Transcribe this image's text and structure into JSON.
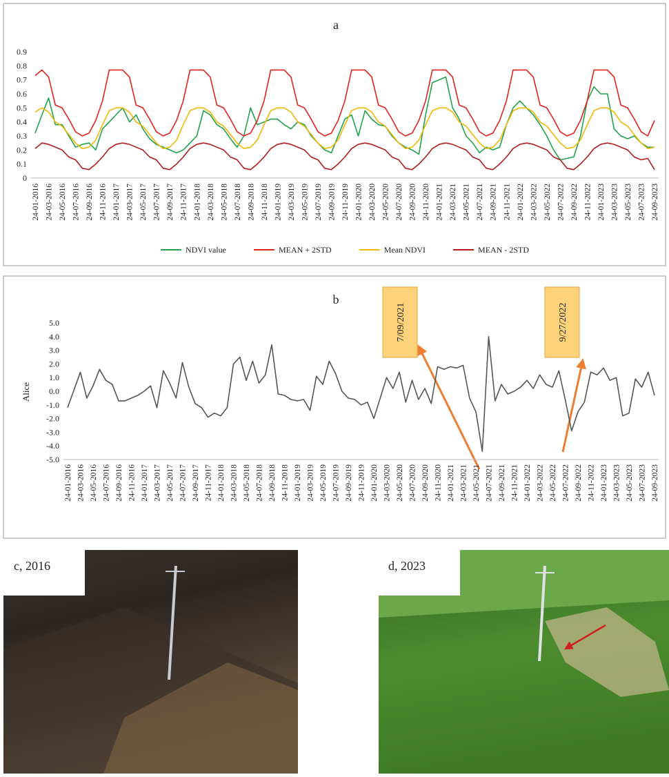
{
  "chart_data": [
    {
      "type": "line",
      "title": "a",
      "x": [
        "24-01-2016",
        "24-02-2016",
        "24-03-2016",
        "24-04-2016",
        "24-05-2016",
        "24-06-2016",
        "24-07-2016",
        "24-08-2016",
        "24-09-2016",
        "24-10-2016",
        "24-11-2016",
        "24-12-2016",
        "24-01-2017",
        "24-02-2017",
        "24-03-2017",
        "24-04-2017",
        "24-05-2017",
        "24-06-2017",
        "24-07-2017",
        "24-08-2017",
        "24-09-2017",
        "24-10-2017",
        "24-11-2017",
        "24-12-2017",
        "24-01-2018",
        "24-02-2018",
        "24-03-2018",
        "24-04-2018",
        "24-05-2018",
        "24-06-2018",
        "24-07-2018",
        "24-08-2018",
        "24-09-2018",
        "24-10-2018",
        "24-11-2018",
        "24-12-2018",
        "24-01-2019",
        "24-02-2019",
        "24-03-2019",
        "24-04-2019",
        "24-05-2019",
        "24-06-2019",
        "24-07-2019",
        "24-08-2019",
        "24-09-2019",
        "24-10-2019",
        "24-11-2019",
        "24-12-2019",
        "24-01-2020",
        "24-02-2020",
        "24-03-2020",
        "24-04-2020",
        "24-05-2020",
        "24-06-2020",
        "24-07-2020",
        "24-08-2020",
        "24-09-2020",
        "24-10-2020",
        "24-11-2020",
        "24-12-2020",
        "24-01-2021",
        "24-02-2021",
        "24-03-2021",
        "24-04-2021",
        "24-05-2021",
        "24-06-2021",
        "24-07-2021",
        "24-08-2021",
        "24-09-2021",
        "24-10-2021",
        "24-11-2021",
        "24-12-2021",
        "24-01-2022",
        "24-02-2022",
        "24-03-2022",
        "24-04-2022",
        "24-05-2022",
        "24-06-2022",
        "24-07-2022",
        "24-08-2022",
        "24-09-2022",
        "24-10-2022",
        "24-11-2022",
        "24-12-2022",
        "24-01-2023",
        "24-02-2023",
        "24-03-2023",
        "24-04-2023",
        "24-05-2023",
        "24-06-2023",
        "24-07-2023",
        "24-08-2023",
        "24-09-2023"
      ],
      "xticks": [
        "24-01-2016",
        "24-03-2016",
        "24-05-2016",
        "24-07-2016",
        "24-09-2016",
        "24-11-2016",
        "24-01-2017",
        "24-03-2017",
        "24-05-2017",
        "24-07-2017",
        "24-09-2017",
        "24-11-2017",
        "24-01-2018",
        "24-03-2018",
        "24-05-2018",
        "24-07-2018",
        "24-09-2018",
        "24-11-2018",
        "24-01-2019",
        "24-03-2019",
        "24-05-2019",
        "24-07-2019",
        "24-09-2019",
        "24-11-2019",
        "24-01-2020",
        "24-03-2020",
        "24-05-2020",
        "24-07-2020",
        "24-09-2020",
        "24-11-2020",
        "24-01-2021",
        "24-03-2021",
        "24-05-2021",
        "24-07-2021",
        "24-09-2021",
        "24-11-2021",
        "24-01-2022",
        "24-03-2022",
        "24-05-2022",
        "24-07-2022",
        "24-09-2022",
        "24-11-2022",
        "24-01-2023",
        "24-03-2023",
        "24-05-2023",
        "24-07-2023",
        "24-09-2023"
      ],
      "ylim": [
        0,
        0.9
      ],
      "yticks": [
        0,
        0.1,
        0.2,
        0.3,
        0.4,
        0.5,
        0.6,
        0.7,
        0.8,
        0.9
      ],
      "legend": "bottom",
      "series": [
        {
          "name": "NDVI value",
          "color": "#1fa34a",
          "values": [
            0.32,
            0.45,
            0.57,
            0.38,
            0.38,
            0.3,
            0.22,
            0.24,
            0.25,
            0.2,
            0.35,
            0.4,
            0.45,
            0.5,
            0.4,
            0.45,
            0.35,
            0.28,
            0.24,
            0.22,
            0.2,
            0.18,
            0.2,
            0.25,
            0.3,
            0.48,
            0.45,
            0.38,
            0.35,
            0.28,
            0.22,
            0.3,
            0.5,
            0.38,
            0.4,
            0.42,
            0.42,
            0.38,
            0.35,
            0.4,
            0.38,
            0.3,
            0.25,
            0.2,
            0.18,
            0.3,
            0.42,
            0.45,
            0.3,
            0.48,
            0.42,
            0.38,
            0.37,
            0.3,
            0.25,
            0.22,
            0.2,
            0.17,
            0.45,
            0.68,
            0.7,
            0.72,
            0.5,
            0.42,
            0.3,
            0.25,
            0.18,
            0.22,
            0.2,
            0.22,
            0.38,
            0.5,
            0.55,
            0.5,
            0.45,
            0.38,
            0.3,
            0.2,
            0.13,
            0.14,
            0.15,
            0.3,
            0.55,
            0.65,
            0.6,
            0.6,
            0.35,
            0.3,
            0.28,
            0.3,
            0.25,
            0.22,
            0.22
          ]
        },
        {
          "name": "MEAN + 2STD",
          "color": "#e3211c",
          "values": [
            0.73,
            0.77,
            0.72,
            0.52,
            0.5,
            0.42,
            0.33,
            0.3,
            0.32,
            0.41,
            0.55,
            0.77,
            0.77,
            0.77,
            0.72,
            0.52,
            0.5,
            0.42,
            0.33,
            0.3,
            0.32,
            0.41,
            0.55,
            0.77,
            0.77,
            0.77,
            0.72,
            0.52,
            0.5,
            0.42,
            0.33,
            0.3,
            0.32,
            0.41,
            0.55,
            0.77,
            0.77,
            0.77,
            0.72,
            0.52,
            0.5,
            0.42,
            0.33,
            0.3,
            0.32,
            0.41,
            0.55,
            0.77,
            0.77,
            0.77,
            0.72,
            0.52,
            0.5,
            0.42,
            0.33,
            0.3,
            0.32,
            0.41,
            0.55,
            0.77,
            0.77,
            0.77,
            0.72,
            0.52,
            0.5,
            0.42,
            0.33,
            0.3,
            0.32,
            0.41,
            0.55,
            0.77,
            0.77,
            0.77,
            0.72,
            0.52,
            0.5,
            0.42,
            0.33,
            0.3,
            0.32,
            0.41,
            0.55,
            0.77,
            0.77,
            0.77,
            0.72,
            0.52,
            0.5,
            0.42,
            0.33,
            0.3,
            0.41
          ]
        },
        {
          "name": "Mean NDVI",
          "color": "#f2b705",
          "values": [
            0.47,
            0.5,
            0.47,
            0.4,
            0.37,
            0.31,
            0.25,
            0.21,
            0.22,
            0.27,
            0.38,
            0.48,
            0.5,
            0.5,
            0.47,
            0.4,
            0.37,
            0.31,
            0.25,
            0.21,
            0.22,
            0.27,
            0.38,
            0.48,
            0.5,
            0.5,
            0.47,
            0.4,
            0.37,
            0.31,
            0.25,
            0.21,
            0.22,
            0.27,
            0.38,
            0.48,
            0.5,
            0.5,
            0.47,
            0.4,
            0.37,
            0.31,
            0.25,
            0.21,
            0.22,
            0.27,
            0.38,
            0.48,
            0.5,
            0.5,
            0.47,
            0.4,
            0.37,
            0.31,
            0.25,
            0.21,
            0.22,
            0.27,
            0.38,
            0.48,
            0.5,
            0.5,
            0.47,
            0.4,
            0.37,
            0.31,
            0.25,
            0.21,
            0.22,
            0.27,
            0.38,
            0.48,
            0.5,
            0.5,
            0.47,
            0.4,
            0.37,
            0.31,
            0.25,
            0.21,
            0.22,
            0.27,
            0.38,
            0.48,
            0.5,
            0.5,
            0.47,
            0.4,
            0.37,
            0.31,
            0.25,
            0.21,
            0.22
          ]
        },
        {
          "name": "MEAN - 2STD",
          "color": "#b01c1c",
          "values": [
            0.21,
            0.25,
            0.24,
            0.22,
            0.2,
            0.15,
            0.13,
            0.07,
            0.06,
            0.1,
            0.15,
            0.21,
            0.24,
            0.25,
            0.24,
            0.22,
            0.2,
            0.15,
            0.13,
            0.07,
            0.06,
            0.1,
            0.15,
            0.21,
            0.24,
            0.25,
            0.24,
            0.22,
            0.2,
            0.15,
            0.13,
            0.07,
            0.06,
            0.1,
            0.15,
            0.21,
            0.24,
            0.25,
            0.24,
            0.22,
            0.2,
            0.15,
            0.13,
            0.07,
            0.06,
            0.1,
            0.15,
            0.21,
            0.24,
            0.25,
            0.24,
            0.22,
            0.2,
            0.15,
            0.13,
            0.07,
            0.06,
            0.1,
            0.15,
            0.21,
            0.24,
            0.25,
            0.24,
            0.22,
            0.2,
            0.15,
            0.13,
            0.07,
            0.06,
            0.1,
            0.15,
            0.21,
            0.24,
            0.25,
            0.24,
            0.22,
            0.2,
            0.15,
            0.13,
            0.07,
            0.06,
            0.1,
            0.15,
            0.21,
            0.24,
            0.25,
            0.24,
            0.22,
            0.2,
            0.15,
            0.13,
            0.14,
            0.06
          ]
        }
      ]
    },
    {
      "type": "line",
      "title": "b",
      "ylabel": "Alice",
      "color": "#555555",
      "x": [
        "24-01-2016",
        "24-02-2016",
        "24-03-2016",
        "24-04-2016",
        "24-05-2016",
        "24-06-2016",
        "24-07-2016",
        "24-08-2016",
        "24-09-2016",
        "24-10-2016",
        "24-11-2016",
        "24-12-2016",
        "24-01-2017",
        "24-02-2017",
        "24-03-2017",
        "24-04-2017",
        "24-05-2017",
        "24-06-2017",
        "24-07-2017",
        "24-08-2017",
        "24-09-2017",
        "24-10-2017",
        "24-11-2017",
        "24-12-2017",
        "24-01-2018",
        "24-02-2018",
        "24-03-2018",
        "24-04-2018",
        "24-05-2018",
        "24-06-2018",
        "24-07-2018",
        "24-08-2018",
        "24-09-2018",
        "24-10-2018",
        "24-11-2018",
        "24-12-2018",
        "24-01-2019",
        "24-02-2019",
        "24-03-2019",
        "24-04-2019",
        "24-05-2019",
        "24-06-2019",
        "24-07-2019",
        "24-08-2019",
        "24-09-2019",
        "24-10-2019",
        "24-11-2019",
        "24-12-2019",
        "24-01-2020",
        "24-02-2020",
        "24-03-2020",
        "24-04-2020",
        "24-05-2020",
        "24-06-2020",
        "24-07-2020",
        "24-08-2020",
        "24-09-2020",
        "24-10-2020",
        "24-11-2020",
        "24-12-2020",
        "24-01-2021",
        "24-02-2021",
        "24-03-2021",
        "24-04-2021",
        "24-05-2021",
        "24-06-2021",
        "24-07-2021",
        "24-08-2021",
        "24-09-2021",
        "24-10-2021",
        "24-11-2021",
        "24-12-2021",
        "24-01-2022",
        "24-02-2022",
        "24-03-2022",
        "24-04-2022",
        "24-05-2022",
        "24-06-2022",
        "24-07-2022",
        "24-08-2022",
        "24-09-2022",
        "24-10-2022",
        "24-11-2022",
        "24-12-2022",
        "24-01-2023",
        "24-02-2023",
        "24-03-2023",
        "24-04-2023",
        "24-05-2023",
        "24-06-2023",
        "24-07-2023",
        "24-08-2023",
        "24-09-2023"
      ],
      "values": [
        -1.2,
        0.1,
        1.4,
        -0.5,
        0.4,
        1.6,
        0.8,
        0.5,
        -0.7,
        -0.7,
        -0.5,
        -0.3,
        0.0,
        0.4,
        -1.2,
        1.5,
        0.6,
        -0.5,
        2.1,
        0.3,
        -0.9,
        -1.2,
        -1.9,
        -1.6,
        -1.8,
        -1.2,
        2.0,
        2.5,
        0.8,
        2.2,
        0.6,
        1.2,
        3.4,
        -0.2,
        -0.3,
        -0.6,
        -0.7,
        -0.6,
        -1.4,
        1.1,
        0.5,
        2.2,
        1.3,
        0.0,
        -0.5,
        -0.6,
        -1.0,
        -0.8,
        -2.0,
        -0.5,
        1.0,
        0.2,
        1.4,
        -0.8,
        0.8,
        -0.6,
        0.2,
        -0.9,
        1.8,
        1.6,
        1.8,
        1.7,
        1.9,
        -0.5,
        -1.5,
        -4.4,
        4.0,
        -0.7,
        0.5,
        -0.2,
        0.0,
        0.3,
        0.8,
        0.2,
        1.2,
        0.5,
        0.3,
        1.5,
        -0.6,
        -2.9,
        -1.5,
        -0.8,
        1.4,
        1.2,
        1.7,
        0.8,
        1.0,
        -1.8,
        -1.6,
        0.9,
        0.3,
        1.4,
        -0.3
      ],
      "xticks": [
        "24-01-2016",
        "24-03-2016",
        "24-05-2016",
        "24-07-2016",
        "24-09-2016",
        "24-11-2016",
        "24-01-2017",
        "24-03-2017",
        "24-05-2017",
        "24-07-2017",
        "24-09-2017",
        "24-11-2017",
        "24-01-2018",
        "24-03-2018",
        "24-05-2018",
        "24-07-2018",
        "24-09-2018",
        "24-11-2018",
        "24-01-2019",
        "24-03-2019",
        "24-05-2019",
        "24-07-2019",
        "24-09-2019",
        "24-11-2019",
        "24-01-2020",
        "24-03-2020",
        "24-05-2020",
        "24-07-2020",
        "24-09-2020",
        "24-11-2020",
        "24-01-2021",
        "24-03-2021",
        "24-05-2021",
        "24-07-2021",
        "24-09-2021",
        "24-11-2021",
        "24-01-2022",
        "24-03-2022",
        "24-05-2022",
        "24-07-2022",
        "24-09-2022",
        "24-11-2022",
        "24-01-2023",
        "24-03-2023",
        "24-05-2023",
        "24-07-2023",
        "24-09-2023"
      ],
      "ylim": [
        -5,
        5
      ],
      "yticks": [
        {
          "value": -5,
          "label": "-5.0"
        },
        {
          "value": -4,
          "label": "-4.0"
        },
        {
          "value": -3,
          "label": "-3.0"
        },
        {
          "value": -2,
          "label": "-2.0"
        },
        {
          "value": -1,
          "label": "-1.0"
        },
        {
          "value": 0,
          "label": "0.0"
        },
        {
          "value": 1,
          "label": "1.0"
        },
        {
          "value": 2,
          "label": "2.0"
        },
        {
          "value": 3,
          "label": "3.0"
        },
        {
          "value": 4,
          "label": "4.0"
        },
        {
          "value": 5,
          "label": "5.0"
        }
      ],
      "annotations": [
        "7/09/2021",
        "9/27/2022"
      ]
    }
  ],
  "panels": [
    {
      "label": "c, 2016"
    },
    {
      "label": "d, 2023"
    }
  ]
}
